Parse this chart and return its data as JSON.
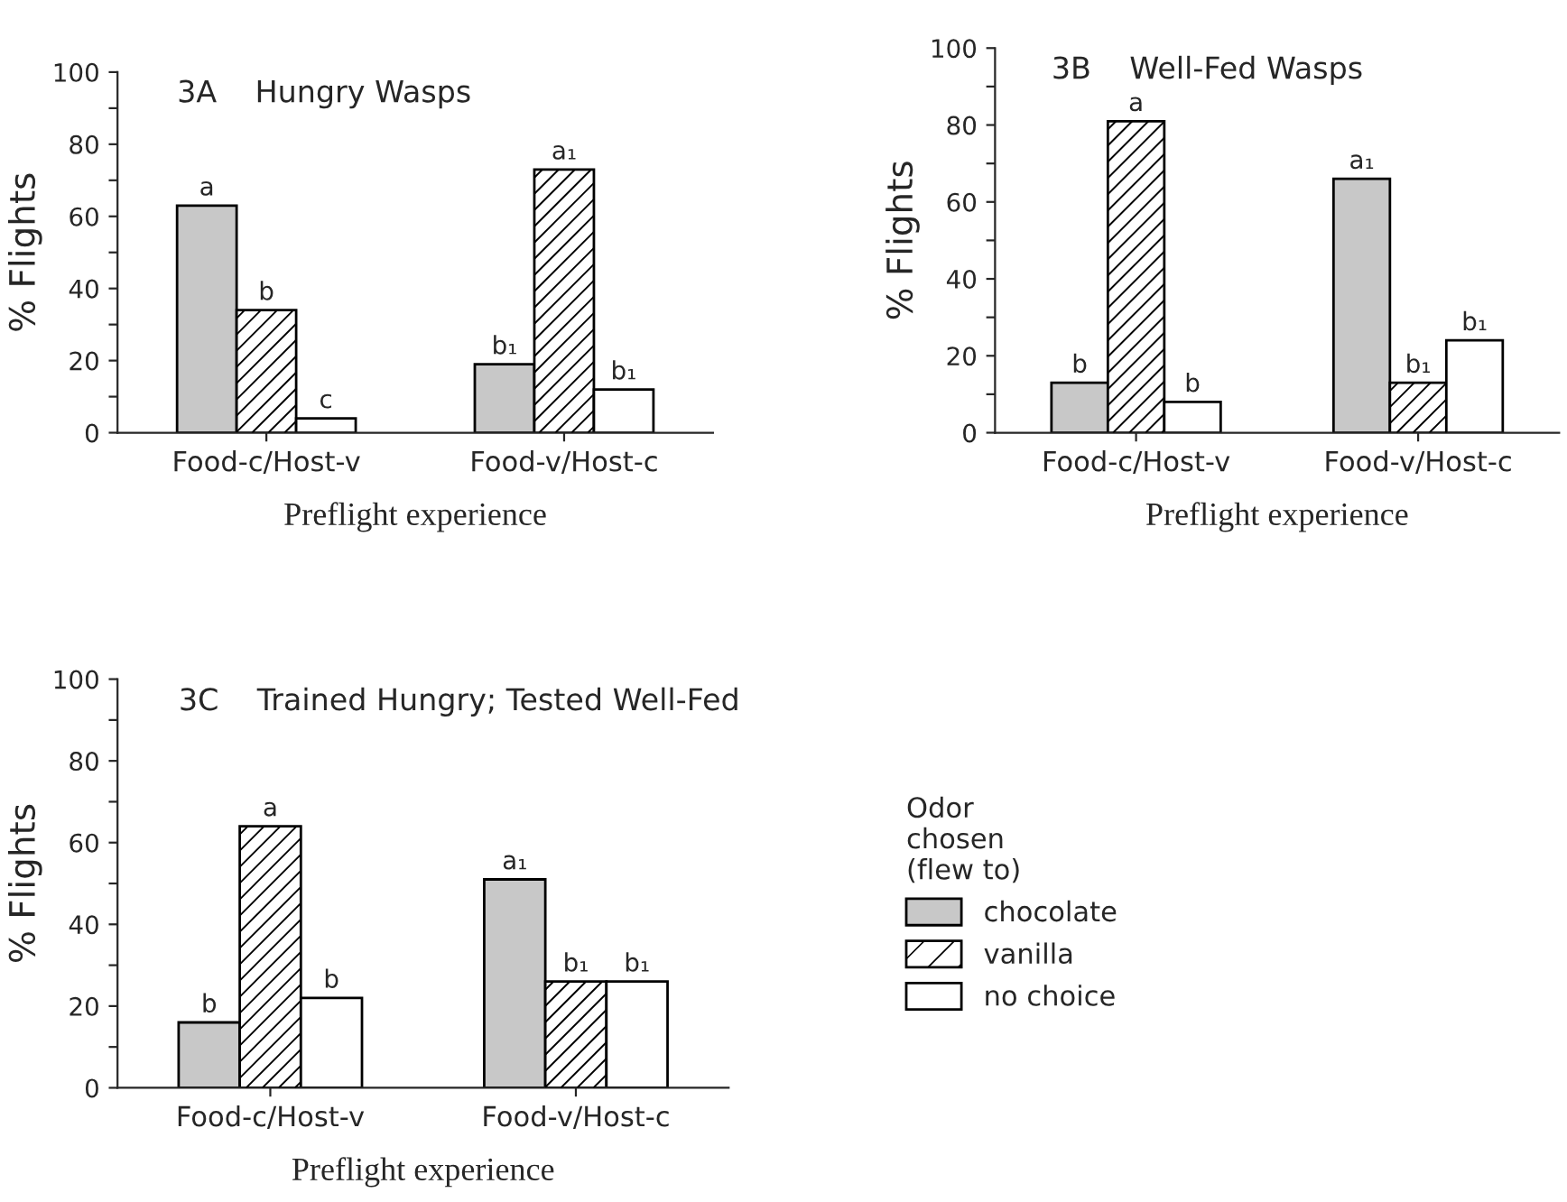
{
  "chart_data": [
    {
      "type": "bar",
      "title": "3A    Hungry Wasps",
      "xlabel": "Preflight experience",
      "ylabel": "% Flights",
      "categories": [
        "Food-c/Host-v",
        "Food-v/Host-c"
      ],
      "ylim": [
        0,
        100
      ],
      "yticks": [
        0,
        {
          "value": 10,
          "label": null
        },
        20,
        {
          "value": 30,
          "label": null
        },
        40,
        {
          "value": 50,
          "label": null
        },
        60,
        {
          "value": 70,
          "label": null
        },
        80,
        {
          "value": 90,
          "label": null
        },
        100
      ],
      "grid": false,
      "legend": false,
      "series": [
        {
          "color": "#c8c8c8",
          "values": [
            63,
            19
          ],
          "value_labels": [
            "a",
            "b₁"
          ]
        },
        {
          "color": "#ffffff",
          "values": [
            34,
            73
          ],
          "value_labels": [
            "b",
            "a₁"
          ]
        },
        {
          "color": "#ffffff",
          "values": [
            4,
            12
          ],
          "value_labels": [
            "c",
            "b₁"
          ]
        }
      ]
    },
    {
      "type": "bar",
      "title": "3B    Well-Fed Wasps",
      "xlabel": "Preflight experience",
      "ylabel": "% Flights",
      "categories": [
        "Food-c/Host-v",
        "Food-v/Host-c"
      ],
      "ylim": [
        0,
        100
      ],
      "yticks": [
        0,
        {
          "value": 10,
          "label": null
        },
        20,
        {
          "value": 30,
          "label": null
        },
        40,
        {
          "value": 50,
          "label": null
        },
        60,
        {
          "value": 70,
          "label": null
        },
        80,
        {
          "value": 90,
          "label": null
        },
        100
      ],
      "grid": false,
      "legend": false,
      "series": [
        {
          "color": "#c8c8c8",
          "values": [
            13,
            66
          ],
          "value_labels": [
            "b",
            "a₁"
          ]
        },
        {
          "color": "#ffffff",
          "values": [
            81,
            13
          ],
          "value_labels": [
            "a",
            "b₁"
          ]
        },
        {
          "color": "#ffffff",
          "values": [
            8,
            24
          ],
          "value_labels": [
            "b",
            "b₁"
          ]
        }
      ]
    },
    {
      "type": "bar",
      "title": "3C    Trained Hungry; Tested Well-Fed",
      "xlabel": "Preflight experience",
      "ylabel": "% Flights",
      "categories": [
        "Food-c/Host-v",
        "Food-v/Host-c"
      ],
      "ylim": [
        0,
        100
      ],
      "yticks": [
        0,
        {
          "value": 10,
          "label": null
        },
        20,
        {
          "value": 30,
          "label": null
        },
        40,
        {
          "value": 50,
          "label": null
        },
        60,
        {
          "value": 70,
          "label": null
        },
        80,
        {
          "value": 90,
          "label": null
        },
        100
      ],
      "grid": false,
      "legend": "right",
      "legend_title": "Odor\nchosen\n(flew to)",
      "series": [
        {
          "name": "chocolate",
          "color": "#c8c8c8",
          "values": [
            16,
            51
          ],
          "value_labels": [
            "b",
            "a₁"
          ]
        },
        {
          "name": "vanilla",
          "color": "#ffffff",
          "values": [
            64,
            26
          ],
          "value_labels": [
            "a",
            "b₁"
          ]
        },
        {
          "name": "no choice",
          "color": "#ffffff",
          "values": [
            22,
            26
          ],
          "value_labels": [
            "b",
            "b₁"
          ]
        }
      ]
    }
  ]
}
